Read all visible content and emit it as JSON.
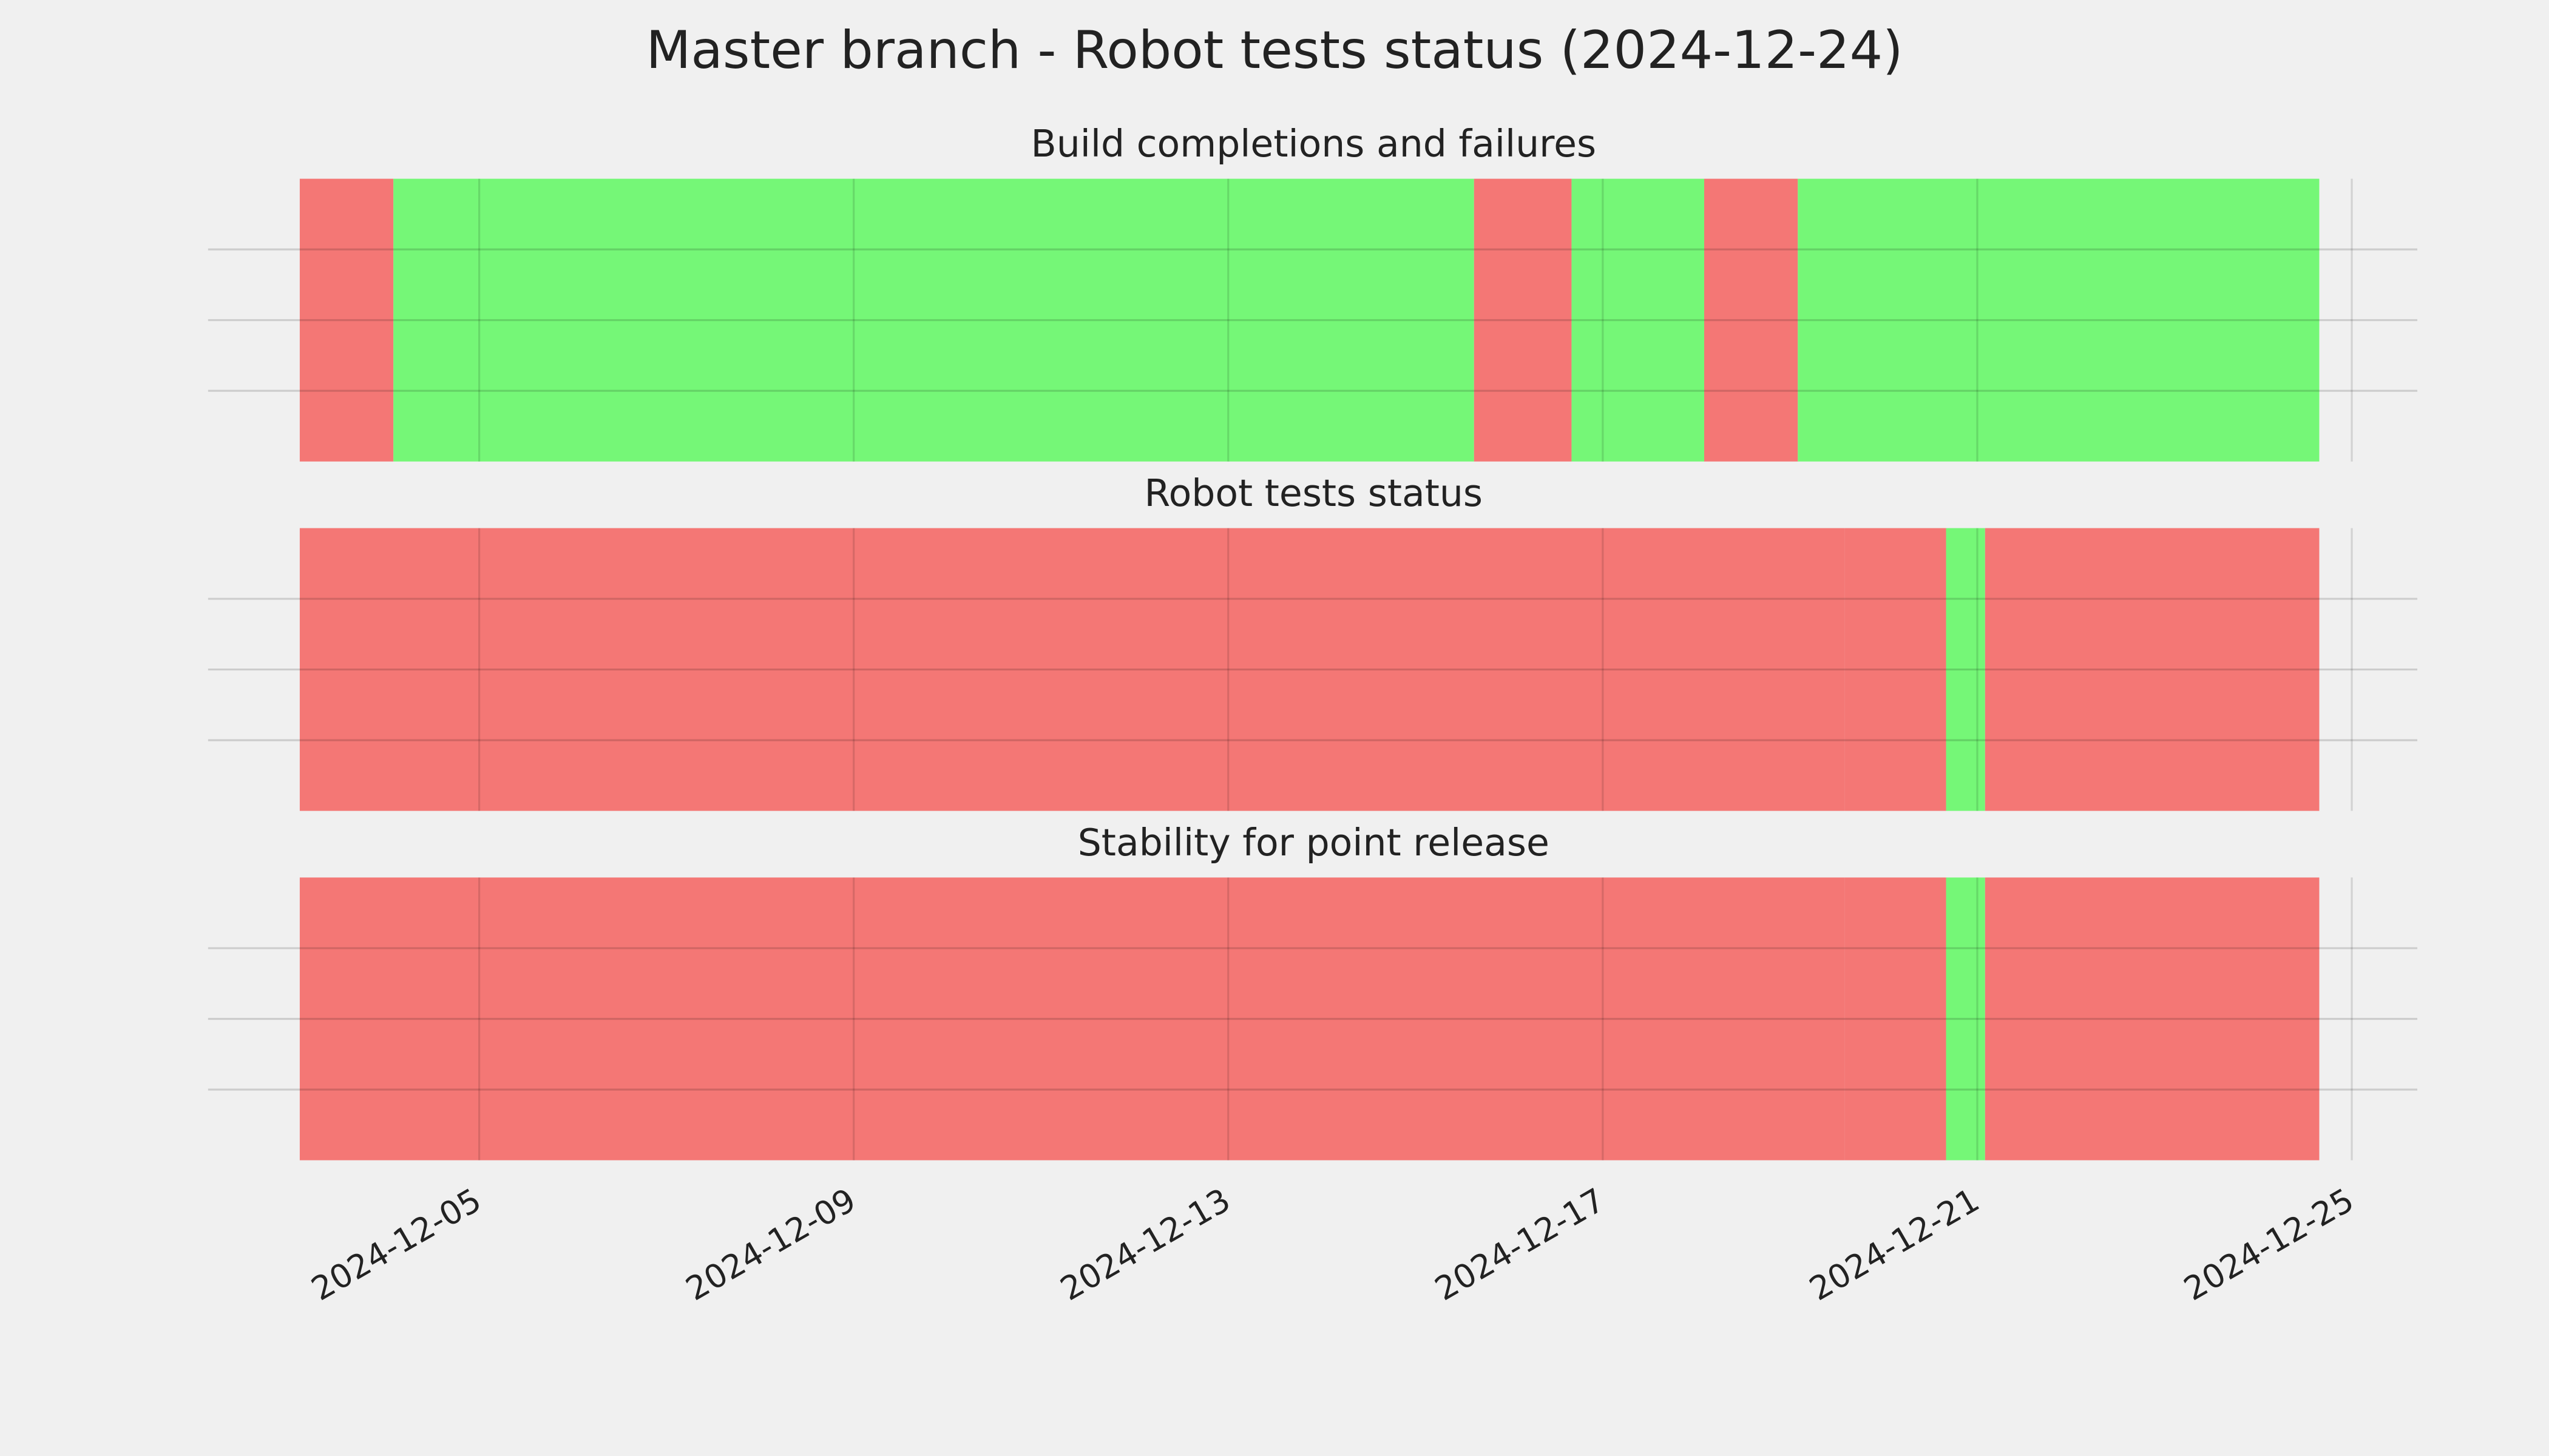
{
  "chart_data": [
    {
      "type": "timeline",
      "title": "Build completions and failures",
      "suptitle": "Master branch - Robot tests status (2024-12-24)",
      "segments": [
        {
          "start": "2024-12-03T02:00",
          "end": "2024-12-04T02:00",
          "color": "#f47775"
        },
        {
          "start": "2024-12-04T02:00",
          "end": "2024-12-15T15:00",
          "color": "#75f777"
        },
        {
          "start": "2024-12-15T15:00",
          "end": "2024-12-16T16:00",
          "color": "#f47775"
        },
        {
          "start": "2024-12-16T16:00",
          "end": "2024-12-18T02:00",
          "color": "#75f777"
        },
        {
          "start": "2024-12-18T02:00",
          "end": "2024-12-19T02:00",
          "color": "#f47775"
        },
        {
          "start": "2024-12-19T02:00",
          "end": "2024-12-24T15:40",
          "color": "#75f777"
        }
      ],
      "xlim": [
        "2024-12-02T02:30",
        "2024-12-25T16:48"
      ],
      "xticks": [
        "2024-12-05",
        "2024-12-09",
        "2024-12-13",
        "2024-12-17",
        "2024-12-21",
        "2024-12-25"
      ],
      "ylim": [
        0,
        1
      ],
      "yticks": [
        0.25,
        0.5,
        0.75
      ],
      "grid": true
    },
    {
      "type": "timeline",
      "title": "Robot tests status",
      "segments": [
        {
          "start": "2024-12-03T02:00",
          "end": "2024-12-19T14:00",
          "color": "#f47775"
        },
        {
          "start": "2024-12-19T14:00",
          "end": "2024-12-20T16:00",
          "color": "#f47775"
        },
        {
          "start": "2024-12-20T16:00",
          "end": "2024-12-21T02:00",
          "color": "#75f777"
        },
        {
          "start": "2024-12-21T02:00",
          "end": "2024-12-24T15:40",
          "color": "#f47775"
        }
      ],
      "xlim": [
        "2024-12-02T02:30",
        "2024-12-25T16:48"
      ],
      "xticks": [
        "2024-12-05",
        "2024-12-09",
        "2024-12-13",
        "2024-12-17",
        "2024-12-21",
        "2024-12-25"
      ],
      "ylim": [
        0,
        1
      ],
      "yticks": [
        0.25,
        0.5,
        0.75
      ],
      "grid": true
    },
    {
      "type": "timeline",
      "title": "Stability for point release",
      "segments": [
        {
          "start": "2024-12-03T02:00",
          "end": "2024-12-19T14:00",
          "color": "#f47775"
        },
        {
          "start": "2024-12-19T14:00",
          "end": "2024-12-20T16:00",
          "color": "#f47775"
        },
        {
          "start": "2024-12-20T16:00",
          "end": "2024-12-21T02:00",
          "color": "#75f777"
        },
        {
          "start": "2024-12-21T02:00",
          "end": "2024-12-24T15:40",
          "color": "#f47775"
        }
      ],
      "xlim": [
        "2024-12-02T02:30",
        "2024-12-25T16:48"
      ],
      "xticks": [
        "2024-12-05",
        "2024-12-09",
        "2024-12-13",
        "2024-12-17",
        "2024-12-21",
        "2024-12-25"
      ],
      "ylim": [
        0,
        1
      ],
      "yticks": [
        0.25,
        0.5,
        0.75
      ],
      "grid": true,
      "show_xtick_labels": true
    }
  ]
}
